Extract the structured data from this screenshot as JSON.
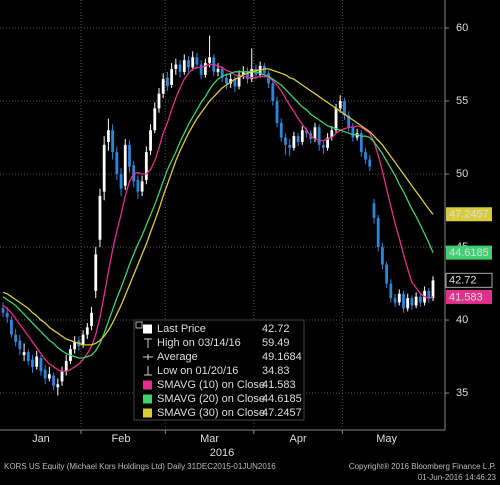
{
  "chart_data": {
    "type": "candlestick",
    "categories": [
      null,
      null,
      null,
      null,
      null,
      null,
      null,
      null,
      null,
      null,
      null,
      null,
      null,
      null,
      null,
      null,
      null,
      null,
      null,
      null,
      null,
      null,
      null,
      null,
      null,
      null,
      null,
      null,
      null,
      null,
      null,
      null,
      null,
      null,
      null,
      null,
      null,
      null,
      null,
      null,
      null,
      null,
      null,
      null,
      null,
      null,
      null,
      null,
      null,
      null,
      null,
      null,
      null,
      null,
      null,
      null,
      null,
      null,
      null,
      null,
      null,
      null,
      null,
      null,
      null,
      null,
      null,
      null,
      null,
      null,
      null,
      null,
      null,
      null,
      null,
      null,
      null,
      null,
      null,
      null,
      null,
      null,
      null,
      null,
      null,
      null,
      null,
      null,
      null,
      null,
      null,
      null,
      null,
      null,
      null,
      null,
      null,
      null,
      null,
      null,
      null,
      null,
      null
    ],
    "open": [
      40.8,
      40.5,
      40.0,
      39.0,
      38.6,
      37.6,
      37.8,
      37.3,
      36.8,
      37.4,
      36.6,
      36.0,
      36.2,
      35.4,
      35.8,
      36.5,
      37.2,
      38.0,
      38.6,
      38.3,
      39.0,
      39.6,
      42.0,
      45.5,
      48.8,
      52.2,
      53.0,
      51.5,
      50.0,
      49.2,
      52.0,
      50.6,
      49.6,
      48.8,
      49.6,
      51.6,
      53.0,
      54.5,
      55.5,
      56.6,
      56.1,
      57.2,
      57.5,
      57.0,
      57.8,
      57.3,
      58.0,
      57.5,
      56.8,
      57.6,
      58.0,
      57.0,
      57.2,
      56.6,
      56.2,
      56.5,
      56.0,
      56.8,
      57.0,
      56.5,
      57.2,
      56.8,
      57.4,
      56.9,
      56.2,
      55.0,
      53.5,
      52.5,
      52.0,
      51.8,
      52.6,
      52.2,
      53.0,
      52.8,
      52.4,
      53.2,
      52.0,
      51.8,
      52.5,
      53.0,
      54.5,
      55.0,
      54.0,
      53.2,
      52.5,
      52.8,
      51.5,
      51.0,
      48.0,
      47.0,
      45.0,
      43.8,
      42.5,
      41.5,
      41.2,
      41.8,
      40.8,
      41.5,
      41.0,
      41.6,
      41.2,
      42.0,
      41.5
    ],
    "high": [
      41.2,
      40.9,
      40.3,
      39.4,
      39.0,
      38.4,
      38.0,
      37.6,
      37.9,
      37.6,
      36.9,
      36.8,
      36.4,
      36.0,
      36.8,
      37.6,
      38.3,
      38.9,
      38.9,
      39.3,
      39.8,
      40.9,
      45.0,
      49.0,
      52.6,
      53.8,
      53.4,
      51.9,
      50.4,
      52.4,
      52.3,
      50.9,
      49.9,
      49.9,
      51.9,
      53.4,
      54.9,
      55.9,
      56.9,
      57.0,
      57.6,
      57.9,
      57.8,
      58.2,
      58.1,
      58.4,
      58.3,
      57.8,
      57.9,
      59.49,
      58.2,
      57.6,
      57.4,
      56.9,
      56.9,
      56.7,
      57.1,
      57.4,
      57.3,
      58.6,
      57.5,
      57.7,
      57.6,
      57.1,
      56.4,
      55.3,
      53.8,
      52.8,
      52.4,
      52.9,
      52.8,
      53.3,
      53.2,
      53.0,
      53.5,
      53.4,
      52.3,
      52.8,
      53.3,
      54.8,
      55.4,
      55.2,
      54.3,
      53.5,
      53.1,
      53.0,
      51.8,
      51.3,
      48.3,
      47.2,
      45.3,
      44.0,
      42.8,
      41.8,
      42.1,
      42.0,
      41.8,
      41.7,
      41.9,
      41.8,
      42.3,
      42.2,
      43.0
    ],
    "low": [
      40.2,
      39.8,
      38.8,
      38.2,
      37.6,
      37.2,
      36.9,
      36.4,
      36.6,
      36.2,
      35.6,
      35.8,
      35.2,
      34.83,
      35.5,
      36.2,
      37.0,
      37.7,
      37.9,
      38.1,
      38.7,
      39.3,
      41.5,
      45.0,
      48.2,
      51.6,
      51.0,
      49.6,
      48.5,
      48.9,
      50.1,
      49.1,
      48.3,
      48.5,
      49.3,
      51.3,
      52.8,
      54.2,
      55.2,
      55.7,
      55.9,
      56.8,
      56.6,
      56.8,
      57.0,
      57.1,
      57.2,
      56.5,
      56.6,
      57.3,
      56.7,
      56.7,
      56.3,
      55.8,
      55.9,
      55.6,
      55.8,
      56.5,
      56.2,
      56.3,
      56.5,
      56.6,
      56.6,
      55.9,
      54.7,
      53.2,
      52.2,
      51.3,
      51.2,
      51.6,
      51.9,
      52.0,
      52.5,
      52.1,
      52.2,
      51.6,
      51.4,
      51.6,
      52.3,
      52.8,
      54.2,
      53.7,
      52.9,
      52.2,
      52.3,
      51.2,
      50.7,
      50.2,
      46.6,
      44.7,
      43.5,
      42.2,
      41.2,
      40.9,
      41.0,
      40.5,
      40.6,
      40.7,
      40.8,
      40.9,
      41.0,
      41.2,
      41.3
    ],
    "close": [
      40.5,
      40.2,
      39.0,
      38.5,
      38.0,
      37.8,
      37.2,
      36.8,
      37.5,
      36.5,
      36.0,
      36.3,
      35.5,
      35.6,
      36.5,
      37.2,
      38.0,
      38.5,
      38.2,
      39.0,
      39.5,
      40.5,
      44.5,
      48.5,
      52.0,
      53.0,
      51.5,
      50.0,
      49.0,
      52.0,
      50.5,
      49.5,
      48.8,
      49.5,
      51.5,
      53.0,
      54.5,
      55.5,
      56.5,
      56.0,
      57.2,
      57.5,
      57.0,
      57.8,
      57.3,
      58.0,
      57.5,
      56.8,
      57.6,
      58.0,
      57.0,
      57.2,
      56.6,
      56.2,
      56.5,
      56.0,
      56.8,
      57.0,
      56.5,
      57.2,
      56.8,
      57.4,
      56.9,
      56.2,
      55.0,
      53.5,
      52.5,
      52.0,
      51.8,
      52.6,
      52.2,
      53.0,
      52.8,
      52.4,
      53.2,
      52.0,
      51.8,
      52.5,
      53.0,
      54.5,
      55.0,
      54.0,
      53.2,
      52.5,
      52.8,
      51.5,
      51.0,
      50.5,
      47.0,
      45.0,
      43.8,
      42.5,
      41.5,
      41.2,
      41.8,
      40.8,
      41.5,
      41.0,
      41.6,
      41.2,
      42.0,
      41.5,
      42.72
    ],
    "up_color": "#ffffff",
    "down_color": "#2f86d8",
    "series": [
      {
        "name": "SMAVG (10) on Close",
        "color": "#e0308c",
        "values": [
          41.0,
          40.8,
          40.5,
          40.1,
          39.7,
          39.3,
          38.9,
          38.5,
          38.1,
          37.7,
          37.3,
          37.0,
          36.8,
          36.6,
          36.5,
          36.5,
          36.6,
          36.8,
          37.0,
          37.3,
          37.7,
          38.2,
          39.0,
          40.2,
          41.7,
          43.3,
          44.8,
          46.1,
          47.2,
          48.5,
          49.5,
          50.0,
          50.1,
          50.0,
          50.0,
          50.3,
          50.9,
          51.8,
          52.8,
          53.5,
          54.4,
          55.2,
          55.9,
          56.5,
          56.9,
          57.2,
          57.3,
          57.3,
          57.4,
          57.5,
          57.5,
          57.4,
          57.3,
          57.1,
          57.0,
          56.8,
          56.7,
          56.7,
          56.6,
          56.6,
          56.6,
          56.7,
          56.7,
          56.6,
          56.4,
          56.1,
          55.7,
          55.2,
          54.7,
          54.3,
          53.8,
          53.4,
          53.0,
          52.6,
          52.4,
          52.3,
          52.3,
          52.4,
          52.5,
          52.8,
          53.0,
          53.1,
          53.2,
          53.2,
          53.3,
          53.2,
          53.0,
          52.8,
          52.2,
          51.3,
          50.2,
          49.0,
          47.8,
          46.6,
          45.6,
          44.5,
          43.5,
          42.6,
          42.2,
          41.8,
          41.6,
          41.5,
          41.583
        ]
      },
      {
        "name": "SMAVG (20) on Close",
        "color": "#3fd070",
        "values": [
          41.6,
          41.4,
          41.2,
          41.0,
          40.7,
          40.4,
          40.1,
          39.8,
          39.5,
          39.2,
          38.9,
          38.6,
          38.4,
          38.1,
          37.9,
          37.7,
          37.6,
          37.5,
          37.4,
          37.4,
          37.5,
          37.6,
          37.9,
          38.4,
          39.1,
          39.9,
          40.7,
          41.5,
          42.2,
          43.0,
          43.8,
          44.5,
          45.2,
          45.8,
          46.5,
          47.2,
          47.9,
          48.7,
          49.5,
          50.3,
          50.9,
          51.5,
          52.2,
          52.8,
          53.4,
          53.9,
          54.4,
          54.9,
          55.3,
          55.8,
          56.2,
          56.5,
          56.7,
          56.8,
          56.9,
          57.0,
          57.0,
          57.0,
          57.0,
          57.0,
          57.0,
          56.9,
          56.8,
          56.7,
          56.5,
          56.3,
          56.1,
          55.8,
          55.5,
          55.2,
          54.9,
          54.6,
          54.4,
          54.1,
          53.9,
          53.7,
          53.5,
          53.3,
          53.2,
          53.1,
          53.0,
          52.9,
          52.8,
          52.7,
          52.7,
          52.6,
          52.6,
          52.5,
          52.2,
          51.8,
          51.4,
          50.9,
          50.4,
          49.9,
          49.3,
          48.8,
          48.2,
          47.6,
          47.1,
          46.5,
          45.9,
          45.3,
          44.6185
        ]
      },
      {
        "name": "SMAVG (30) on Close",
        "color": "#d8cc3c",
        "values": [
          41.9,
          41.8,
          41.6,
          41.4,
          41.2,
          41.0,
          40.8,
          40.5,
          40.3,
          40.0,
          39.8,
          39.5,
          39.3,
          39.1,
          38.9,
          38.7,
          38.6,
          38.5,
          38.4,
          38.3,
          38.3,
          38.3,
          38.4,
          38.6,
          38.9,
          39.3,
          39.8,
          40.4,
          41.0,
          41.7,
          42.4,
          43.1,
          43.8,
          44.5,
          45.2,
          46.0,
          46.8,
          47.6,
          48.5,
          49.3,
          50.1,
          50.9,
          51.6,
          52.2,
          52.8,
          53.3,
          53.8,
          54.2,
          54.6,
          55.0,
          55.3,
          55.6,
          55.9,
          56.1,
          56.3,
          56.5,
          56.6,
          56.8,
          56.9,
          57.0,
          57.1,
          57.1,
          57.2,
          57.2,
          57.1,
          57.0,
          56.9,
          56.8,
          56.6,
          56.5,
          56.3,
          56.1,
          55.9,
          55.7,
          55.5,
          55.3,
          55.1,
          54.9,
          54.7,
          54.5,
          54.3,
          54.1,
          53.9,
          53.7,
          53.5,
          53.3,
          53.1,
          52.9,
          52.6,
          52.3,
          52.0,
          51.6,
          51.2,
          50.8,
          50.4,
          50.0,
          49.6,
          49.2,
          48.8,
          48.4,
          48.0,
          47.6,
          47.2457
        ]
      }
    ],
    "ylim": [
      32.47,
      61.92
    ],
    "yticks": [
      35,
      40,
      45,
      50,
      55,
      60
    ],
    "xticks": [
      {
        "value": 9,
        "label": "Jan"
      },
      {
        "value": 28,
        "label": "Feb"
      },
      {
        "value": 49,
        "label": "Mar"
      },
      {
        "value": 70,
        "label": "Apr"
      },
      {
        "value": 91,
        "label": "May"
      }
    ],
    "xgrid": [
      18.5,
      38.5,
      59.5,
      80.5
    ],
    "x_axis_label": "2016",
    "grid": true,
    "legend": {
      "last_price_label": "Last Price",
      "high_label": "High on 03/14/16",
      "average_label": "Average",
      "average": 49.1684,
      "low_label": "Low on 01/20/16"
    }
  },
  "footer": {
    "left": "KORS US Equity (Michael Kors Holdings Ltd)  Daily 31DEC2015-01JUN2016",
    "right": "Copyright® 2016 Bloomberg Finance L.P.",
    "timestamp": "01-Jun-2016 14:46:23"
  }
}
